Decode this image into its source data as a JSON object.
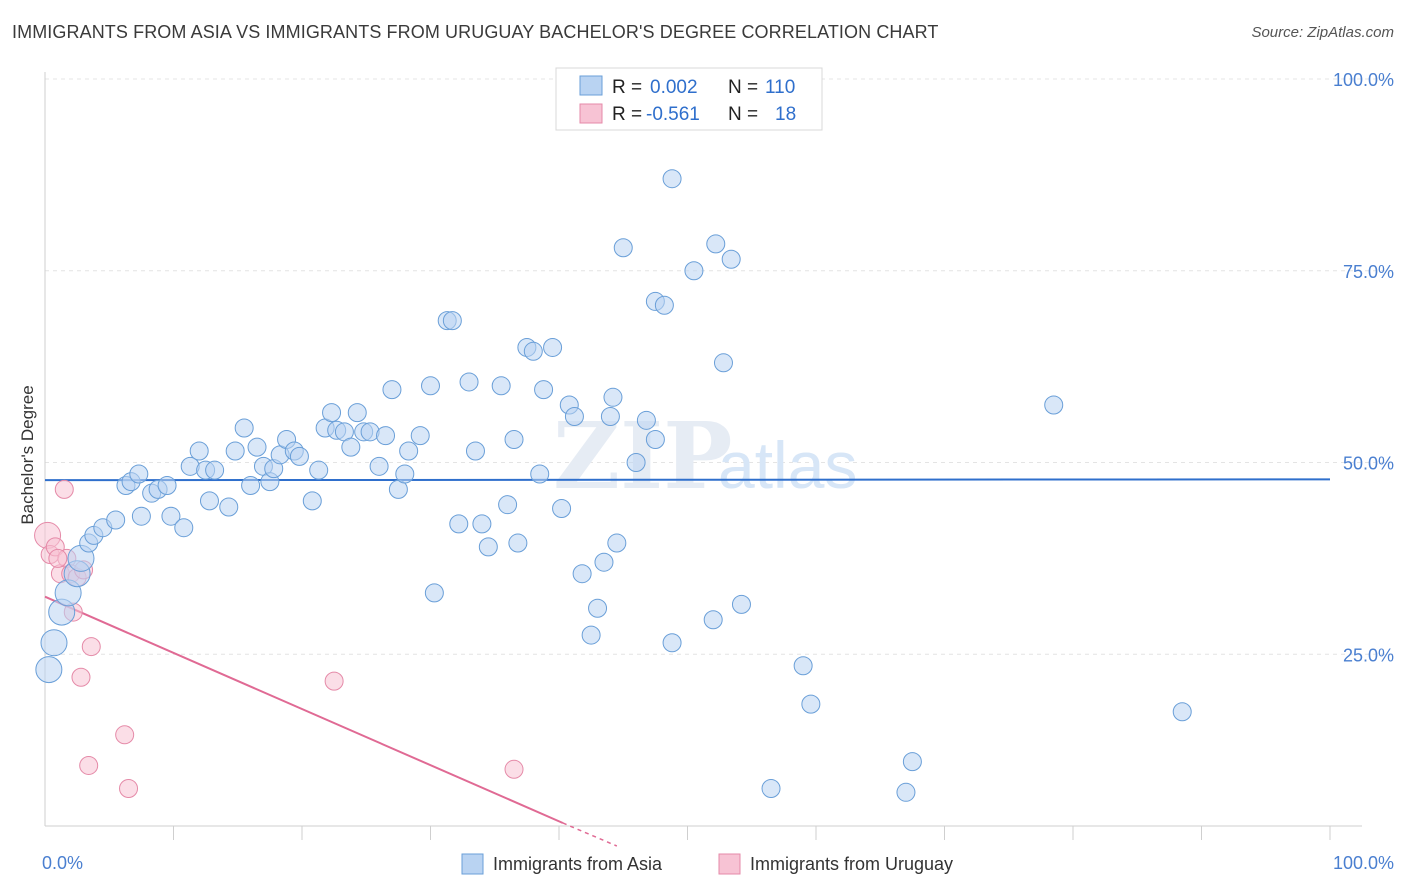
{
  "header": {
    "title": "IMMIGRANTS FROM ASIA VS IMMIGRANTS FROM URUGUAY BACHELOR'S DEGREE CORRELATION CHART",
    "source": "Source: ZipAtlas.com"
  },
  "watermark": {
    "zip": "ZIP",
    "atlas": "atlas"
  },
  "stats_legend": {
    "rows": [
      {
        "r_label": "R =",
        "r_value": "0.002",
        "n_label": "N =",
        "n_value": "110"
      },
      {
        "r_label": "R =",
        "r_value": "-0.561",
        "n_label": "N =",
        "n_value": "18"
      }
    ]
  },
  "bottom_legend": {
    "items": [
      {
        "label": "Immigrants from Asia"
      },
      {
        "label": "Immigrants from Uruguay"
      }
    ]
  },
  "colors": {
    "asia_fill": "#b9d3f2",
    "asia_stroke": "#6a9fd8",
    "asia_line": "#2f6fcc",
    "uruguay_fill": "#f7c3d4",
    "uruguay_stroke": "#e58aa8",
    "uruguay_line": "#e06a94",
    "axis_text": "#4a7fd0",
    "grid": "#e4e4e4"
  },
  "chart_data": {
    "type": "scatter",
    "title": "IMMIGRANTS FROM ASIA VS IMMIGRANTS FROM URUGUAY BACHELOR'S DEGREE CORRELATION CHART",
    "xlabel": "",
    "ylabel": "Bachelor's Degree",
    "xlim": [
      0,
      100
    ],
    "ylim": [
      0,
      100
    ],
    "x_tick_labels": [
      "0.0%",
      "100.0%"
    ],
    "y_tick_labels": [
      {
        "value": 25,
        "label": "25.0%"
      },
      {
        "value": 50,
        "label": "50.0%"
      },
      {
        "value": 75,
        "label": "75.0%"
      },
      {
        "value": 100,
        "label": "100.0%"
      }
    ],
    "grid": true,
    "legend_position": "top-center",
    "series": [
      {
        "name": "Immigrants from Asia",
        "r": 0.002,
        "n": 110,
        "trend": {
          "x": [
            0,
            100
          ],
          "y": [
            47.7,
            47.8
          ]
        },
        "points": [
          [
            0.3,
            23.0,
            2
          ],
          [
            0.7,
            26.5,
            2
          ],
          [
            1.3,
            30.5,
            2
          ],
          [
            1.8,
            33.0,
            2
          ],
          [
            2.5,
            35.5,
            2
          ],
          [
            2.8,
            37.5,
            2
          ],
          [
            3.4,
            39.5,
            1
          ],
          [
            3.8,
            40.5,
            1
          ],
          [
            4.5,
            41.5,
            1
          ],
          [
            5.5,
            42.5,
            1
          ],
          [
            6.3,
            47.0,
            1
          ],
          [
            6.7,
            47.5,
            1
          ],
          [
            7.3,
            48.5,
            1
          ],
          [
            7.5,
            43.0,
            1
          ],
          [
            8.3,
            46.0,
            1
          ],
          [
            8.8,
            46.5,
            1
          ],
          [
            9.5,
            47.0,
            1
          ],
          [
            9.8,
            43.0,
            1
          ],
          [
            10.8,
            41.5,
            1
          ],
          [
            11.3,
            49.5,
            1
          ],
          [
            12.0,
            51.5,
            1
          ],
          [
            12.5,
            49.0,
            1
          ],
          [
            12.8,
            45.0,
            1
          ],
          [
            13.2,
            49.0,
            1
          ],
          [
            14.3,
            44.2,
            1
          ],
          [
            14.8,
            51.5,
            1
          ],
          [
            15.5,
            54.5,
            1
          ],
          [
            16.0,
            47.0,
            1
          ],
          [
            16.5,
            52.0,
            1
          ],
          [
            17.0,
            49.5,
            1
          ],
          [
            17.5,
            47.5,
            1
          ],
          [
            17.8,
            49.2,
            1
          ],
          [
            18.3,
            51.0,
            1
          ],
          [
            18.8,
            53.0,
            1
          ],
          [
            19.4,
            51.5,
            1
          ],
          [
            19.8,
            50.8,
            1
          ],
          [
            20.8,
            45.0,
            1
          ],
          [
            21.3,
            49.0,
            1
          ],
          [
            21.8,
            54.5,
            1
          ],
          [
            22.3,
            56.5,
            1
          ],
          [
            22.7,
            54.2,
            1
          ],
          [
            23.3,
            54.0,
            1
          ],
          [
            23.8,
            52.0,
            1
          ],
          [
            24.3,
            56.5,
            1
          ],
          [
            24.8,
            54.0,
            1
          ],
          [
            25.3,
            54.0,
            1
          ],
          [
            26.0,
            49.5,
            1
          ],
          [
            26.5,
            53.5,
            1
          ],
          [
            27.0,
            59.5,
            1
          ],
          [
            27.5,
            46.5,
            1
          ],
          [
            28.0,
            48.5,
            1
          ],
          [
            28.3,
            51.5,
            1
          ],
          [
            29.2,
            53.5,
            1
          ],
          [
            30.0,
            60.0,
            1
          ],
          [
            30.3,
            33.0,
            1
          ],
          [
            31.3,
            68.5,
            1
          ],
          [
            31.7,
            68.5,
            1
          ],
          [
            32.2,
            42.0,
            1
          ],
          [
            33.0,
            60.5,
            1
          ],
          [
            33.5,
            51.5,
            1
          ],
          [
            34.0,
            42.0,
            1
          ],
          [
            34.5,
            39.0,
            1
          ],
          [
            35.5,
            60.0,
            1
          ],
          [
            36.0,
            44.5,
            1
          ],
          [
            36.5,
            53.0,
            1
          ],
          [
            36.8,
            39.5,
            1
          ],
          [
            37.5,
            65.0,
            1
          ],
          [
            38.0,
            64.5,
            1
          ],
          [
            38.5,
            48.5,
            1
          ],
          [
            38.8,
            59.5,
            1
          ],
          [
            39.5,
            65.0,
            1
          ],
          [
            40.2,
            44.0,
            1
          ],
          [
            40.8,
            57.5,
            1
          ],
          [
            41.2,
            56.0,
            1
          ],
          [
            41.8,
            35.5,
            1
          ],
          [
            42.5,
            27.5,
            1
          ],
          [
            43.0,
            31.0,
            1
          ],
          [
            43.5,
            37.0,
            1
          ],
          [
            44.0,
            56.0,
            1
          ],
          [
            44.2,
            58.5,
            1
          ],
          [
            44.5,
            39.5,
            1
          ],
          [
            45.0,
            78.0,
            1
          ],
          [
            46.0,
            50.0,
            1
          ],
          [
            46.8,
            55.5,
            1
          ],
          [
            47.5,
            71.0,
            1
          ],
          [
            47.5,
            53.0,
            1
          ],
          [
            48.2,
            70.5,
            1
          ],
          [
            48.8,
            26.5,
            1
          ],
          [
            48.8,
            87.0,
            1
          ],
          [
            50.5,
            75.0,
            1
          ],
          [
            52.0,
            29.5,
            1
          ],
          [
            52.2,
            78.5,
            1
          ],
          [
            52.8,
            63.0,
            1
          ],
          [
            53.4,
            76.5,
            1
          ],
          [
            54.2,
            31.5,
            1
          ],
          [
            56.5,
            7.5,
            1
          ],
          [
            59.0,
            23.5,
            1
          ],
          [
            59.6,
            18.5,
            1
          ],
          [
            67.0,
            7.0,
            1
          ],
          [
            67.5,
            11.0,
            1
          ],
          [
            78.5,
            57.5,
            1
          ],
          [
            88.5,
            17.5,
            1
          ]
        ]
      },
      {
        "name": "Immigrants from Uruguay",
        "r": -0.561,
        "n": 18,
        "trend": {
          "x": [
            0,
            40.3
          ],
          "y": [
            32.5,
            3.0
          ],
          "dashed_to": [
            44.5,
            0.0
          ]
        },
        "points": [
          [
            0.2,
            40.5,
            2
          ],
          [
            0.4,
            38.0,
            1
          ],
          [
            0.8,
            39.0,
            1
          ],
          [
            1.2,
            35.5,
            1
          ],
          [
            1.5,
            46.5,
            1
          ],
          [
            1.7,
            37.5,
            1
          ],
          [
            2.0,
            35.5,
            1
          ],
          [
            2.2,
            30.5,
            1
          ],
          [
            2.5,
            35.0,
            1
          ],
          [
            2.8,
            22.0,
            1
          ],
          [
            3.0,
            36.0,
            1
          ],
          [
            3.4,
            10.5,
            1
          ],
          [
            3.6,
            26.0,
            1
          ],
          [
            6.2,
            14.5,
            1
          ],
          [
            6.5,
            7.5,
            1
          ],
          [
            22.5,
            21.5,
            1
          ],
          [
            36.5,
            10.0,
            1
          ],
          [
            1.0,
            37.5,
            1
          ]
        ]
      }
    ]
  }
}
